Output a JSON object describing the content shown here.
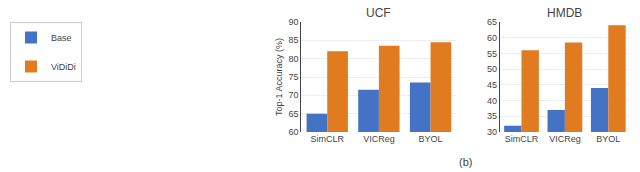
{
  "subtitle": "(b)",
  "chart_data": [
    {
      "type": "bar",
      "title": "UCF",
      "categories": [
        "SimCLR",
        "VICReg",
        "BYOL"
      ],
      "series": [
        {
          "name": "Base",
          "color": "#4472C4",
          "values": [
            65.0,
            71.5,
            73.5
          ]
        },
        {
          "name": "ViDiDi",
          "color": "#E07B20",
          "values": [
            82.0,
            83.5,
            84.5
          ]
        }
      ],
      "ylabel": "Top-1 Accuracy (%)",
      "ylim": [
        60,
        90
      ],
      "yticks": [
        60,
        65,
        70,
        75,
        80,
        85,
        90
      ],
      "grid": true,
      "legend": "upper left"
    },
    {
      "type": "bar",
      "title": "HMDB",
      "categories": [
        "SimCLR",
        "VICReg",
        "BYOL"
      ],
      "series": [
        {
          "name": "Base",
          "color": "#4472C4",
          "values": [
            32.0,
            37.0,
            44.0
          ]
        },
        {
          "name": "ViDiDi",
          "color": "#E07B20",
          "values": [
            56.0,
            58.5,
            64.0
          ]
        }
      ],
      "ylim": [
        30,
        65
      ],
      "yticks": [
        30,
        35,
        40,
        45,
        50,
        55,
        60,
        65
      ],
      "grid": true,
      "legend": "upper left"
    }
  ]
}
